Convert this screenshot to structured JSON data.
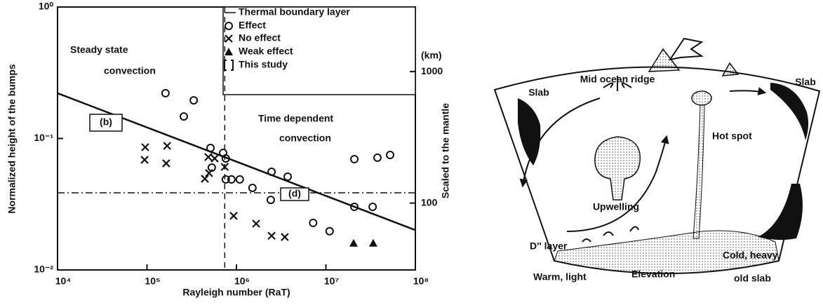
{
  "chart_data": {
    "type": "scatter",
    "xlabel": "Rayleigh number (RaT)",
    "ylabel": "Normalized height of the bumps",
    "y2label": "Scaled to the mantle",
    "y2unit": "(km)",
    "xscale": "log",
    "yscale": "log",
    "y2scale": "log",
    "xlim": [
      10000,
      100000000
    ],
    "ylim": [
      0.01,
      1
    ],
    "y2lim": [
      31,
      3100
    ],
    "xticks": [
      {
        "value": 10000,
        "label": "10⁴"
      },
      {
        "value": 100000,
        "label": "10⁵"
      },
      {
        "value": 1000000,
        "label": "10⁶"
      },
      {
        "value": 10000000,
        "label": "10⁷"
      },
      {
        "value": 100000000,
        "label": "10⁸"
      }
    ],
    "yticks": [
      {
        "value": 0.01,
        "label": "10⁻²"
      },
      {
        "value": 0.1,
        "label": "10⁻¹"
      },
      {
        "value": 1,
        "label": "10⁰"
      }
    ],
    "y2ticks": [
      100,
      1000
    ],
    "color": "#111111",
    "series": [
      {
        "name": "Thermal boundary layer",
        "marker": "line",
        "x": [
          10000,
          100000000
        ],
        "values": [
          0.221,
          0.0201
        ]
      },
      {
        "name": "Effect",
        "marker": "circle",
        "x": [
          161000,
          333000,
          258000,
          513000,
          710000,
          760000,
          530000,
          760000,
          880000,
          1090000,
          1510000,
          2470000,
          3740000,
          2420000,
          7200000,
          11000000,
          20800000,
          37700000,
          52200000,
          20800000,
          33300000
        ],
        "values": [
          0.221,
          0.195,
          0.147,
          0.0847,
          0.0778,
          0.0705,
          0.0601,
          0.0488,
          0.0488,
          0.0488,
          0.0421,
          0.0558,
          0.0512,
          0.0341,
          0.0228,
          0.0197,
          0.0696,
          0.0714,
          0.0749,
          0.0302,
          0.0302
        ]
      },
      {
        "name": "No effect",
        "marker": "cross",
        "x": [
          95500,
          168000,
          94000,
          164000,
          485000,
          571000,
          444000,
          494000,
          740000,
          930000,
          1660000,
          2470000,
          3470000
        ],
        "values": [
          0.0858,
          0.0879,
          0.0688,
          0.0647,
          0.0722,
          0.0705,
          0.0494,
          0.0545,
          0.0608,
          0.0258,
          0.0225,
          0.0182,
          0.0178
        ]
      },
      {
        "name": "Weak effect",
        "marker": "triangle",
        "x": [
          20400000,
          33800000
        ],
        "values": [
          0.016,
          0.016
        ]
      }
    ],
    "legend_extra_entry": "This study",
    "reference_lines": {
      "x": 740000,
      "y": 0.0386
    },
    "annotations": [
      {
        "lines": [
          "Steady state",
          "convection"
        ]
      },
      {
        "lines": [
          "Time dependent",
          "convection"
        ]
      }
    ],
    "boxed_labels": [
      "(b)",
      "(d)"
    ]
  },
  "diagram": {
    "labels": [
      "Mid ocean ridge",
      "Slab",
      "Slab",
      "Hot spot",
      "Upwelling",
      "D'' layer",
      "Cold, heavy",
      "Warm, light",
      "Elevation",
      "old slab"
    ]
  }
}
